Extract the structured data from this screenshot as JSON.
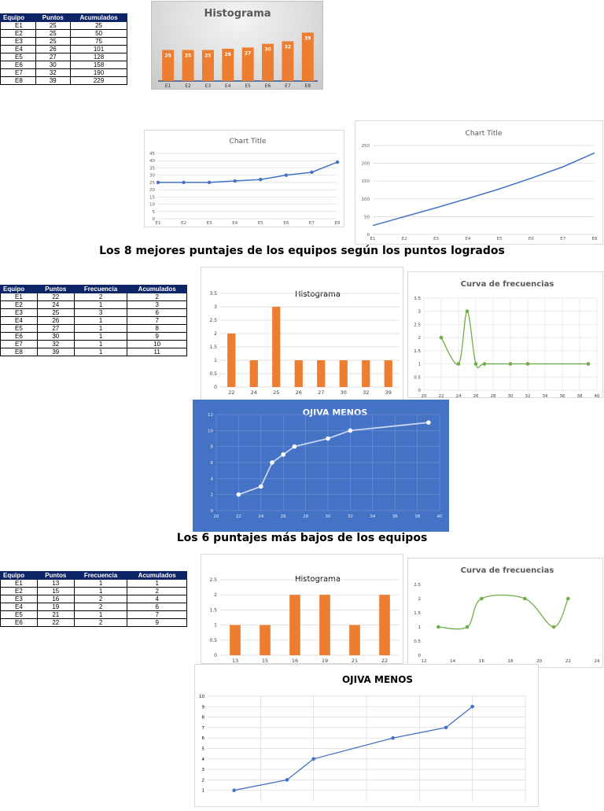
{
  "tables": [
    {
      "headers": [
        "Equipo",
        "Puntos",
        "Acumulados"
      ],
      "rows": [
        [
          "E1",
          "25",
          "25"
        ],
        [
          "E2",
          "25",
          "50"
        ],
        [
          "E3",
          "25",
          "75"
        ],
        [
          "E4",
          "26",
          "101"
        ],
        [
          "E5",
          "27",
          "128"
        ],
        [
          "E6",
          "30",
          "158"
        ],
        [
          "E7",
          "32",
          "190"
        ],
        [
          "E8",
          "39",
          "229"
        ]
      ]
    },
    {
      "headers": [
        "Equipo",
        "Puntos",
        "Frecuencia",
        "Acumulados"
      ],
      "rows": [
        [
          "E1",
          "22",
          "2",
          "2"
        ],
        [
          "E2",
          "24",
          "1",
          "3"
        ],
        [
          "E3",
          "25",
          "3",
          "6"
        ],
        [
          "E4",
          "26",
          "1",
          "7"
        ],
        [
          "E5",
          "27",
          "1",
          "8"
        ],
        [
          "E6",
          "30",
          "1",
          "9"
        ],
        [
          "E7",
          "32",
          "1",
          "10"
        ],
        [
          "E8",
          "39",
          "1",
          "11"
        ]
      ]
    },
    {
      "headers": [
        "Equipo",
        "Puntos",
        "Frecuencia",
        "Acumulados"
      ],
      "rows": [
        [
          "E1",
          "13",
          "1",
          "1"
        ],
        [
          "E2",
          "15",
          "1",
          "2"
        ],
        [
          "E3",
          "16",
          "2",
          "4"
        ],
        [
          "E4",
          "19",
          "2",
          "6"
        ],
        [
          "E5",
          "21",
          "1",
          "7"
        ],
        [
          "E6",
          "22",
          "2",
          "9"
        ]
      ]
    }
  ],
  "section_titles": {
    "top8": "Los 8 mejores puntajes de los equipos según los puntos logrados",
    "bottom6": "Los 6 puntajes más bajos de los equipos"
  },
  "colors": {
    "orange": "#ed7d31",
    "blue": "#4472c4",
    "green": "#70ad47",
    "navy": "#0d2466"
  },
  "chart_data": [
    {
      "id": "hist1",
      "type": "bar",
      "title": "Histograma",
      "categories": [
        "E1",
        "E2",
        "E3",
        "E4",
        "E5",
        "E6",
        "E7",
        "E8"
      ],
      "values": [
        25,
        25,
        25,
        26,
        27,
        30,
        32,
        39
      ],
      "data_labels": [
        "25",
        "25",
        "25",
        "26",
        "27",
        "30",
        "32",
        "39"
      ],
      "ylim": [
        0,
        45
      ]
    },
    {
      "id": "line1",
      "type": "line",
      "title": "Chart Title",
      "categories": [
        "E1",
        "E2",
        "E3",
        "E4",
        "E5",
        "E6",
        "E7",
        "E8"
      ],
      "values": [
        25,
        25,
        25,
        26,
        27,
        30,
        32,
        39
      ],
      "ylim": [
        0,
        45
      ],
      "yticks": [
        "0",
        "5",
        "10",
        "15",
        "20",
        "25",
        "30",
        "35",
        "40",
        "45"
      ],
      "markers": true
    },
    {
      "id": "line2",
      "type": "line",
      "title": "Chart Title",
      "categories": [
        "E1",
        "E2",
        "E3",
        "E4",
        "E5",
        "E6",
        "E7",
        "E8"
      ],
      "values": [
        25,
        50,
        75,
        101,
        128,
        158,
        190,
        229
      ],
      "ylim": [
        0,
        250
      ],
      "yticks": [
        "0",
        "50",
        "100",
        "150",
        "200",
        "250"
      ],
      "markers": false
    },
    {
      "id": "hist2",
      "type": "bar",
      "title": "Histograma",
      "categories": [
        "22",
        "24",
        "25",
        "26",
        "27",
        "30",
        "32",
        "39"
      ],
      "values": [
        2,
        1,
        3,
        1,
        1,
        1,
        1,
        1
      ],
      "ylim": [
        0,
        3.5
      ],
      "yticks": [
        "0",
        "0.5",
        "1",
        "1.5",
        "2",
        "2.5",
        "3",
        "3.5"
      ]
    },
    {
      "id": "curve2",
      "type": "scatter",
      "title": "Curva de frecuencias",
      "x": [
        22,
        24,
        25,
        26,
        27,
        30,
        32,
        39
      ],
      "y": [
        2,
        1,
        3,
        1,
        1,
        1,
        1,
        1
      ],
      "xlim": [
        20,
        40
      ],
      "ylim": [
        0,
        3.5
      ],
      "xticks": [
        "20",
        "22",
        "24",
        "26",
        "28",
        "30",
        "32",
        "34",
        "36",
        "38",
        "40"
      ],
      "yticks": [
        "0",
        "0.5",
        "1",
        "1.5",
        "2",
        "2.5",
        "3",
        "3.5"
      ]
    },
    {
      "id": "ojiva2",
      "type": "scatter",
      "title": "OJIVA MENOS",
      "x": [
        22,
        24,
        25,
        26,
        27,
        30,
        32,
        39
      ],
      "y": [
        2,
        3,
        6,
        7,
        8,
        9,
        10,
        11
      ],
      "xlim": [
        20,
        40
      ],
      "ylim": [
        0,
        12
      ],
      "xticks": [
        "20",
        "22",
        "24",
        "26",
        "28",
        "30",
        "32",
        "34",
        "36",
        "38",
        "40"
      ],
      "yticks": [
        "0",
        "2",
        "4",
        "6",
        "8",
        "10",
        "12"
      ]
    },
    {
      "id": "hist3",
      "type": "bar",
      "title": "Histograma",
      "categories": [
        "13",
        "15",
        "16",
        "19",
        "21",
        "22"
      ],
      "values": [
        1,
        1,
        2,
        2,
        1,
        2
      ],
      "ylim": [
        0,
        2.5
      ],
      "yticks": [
        "0",
        "0.5",
        "1",
        "1.5",
        "2",
        "2.5"
      ]
    },
    {
      "id": "curve3",
      "type": "scatter",
      "title": "Curva de frecuencias",
      "x": [
        13,
        15,
        16,
        19,
        21,
        22
      ],
      "y": [
        1,
        1,
        2,
        2,
        1,
        2
      ],
      "xlim": [
        12,
        24
      ],
      "ylim": [
        0,
        2.5
      ],
      "xticks": [
        "12",
        "14",
        "16",
        "18",
        "20",
        "22",
        "24"
      ],
      "yticks": [
        "0",
        "0.5",
        "1",
        "1.5",
        "2",
        "2.5"
      ]
    },
    {
      "id": "ojiva3",
      "type": "scatter",
      "title": "OJIVA MENOS",
      "x": [
        13,
        15,
        16,
        19,
        21,
        22
      ],
      "y": [
        1,
        2,
        4,
        6,
        7,
        9
      ],
      "xlim": [
        12,
        24
      ],
      "ylim": [
        0,
        10
      ],
      "yticks": [
        "1",
        "2",
        "3",
        "4",
        "5",
        "6",
        "7",
        "8",
        "9",
        "10"
      ]
    }
  ]
}
